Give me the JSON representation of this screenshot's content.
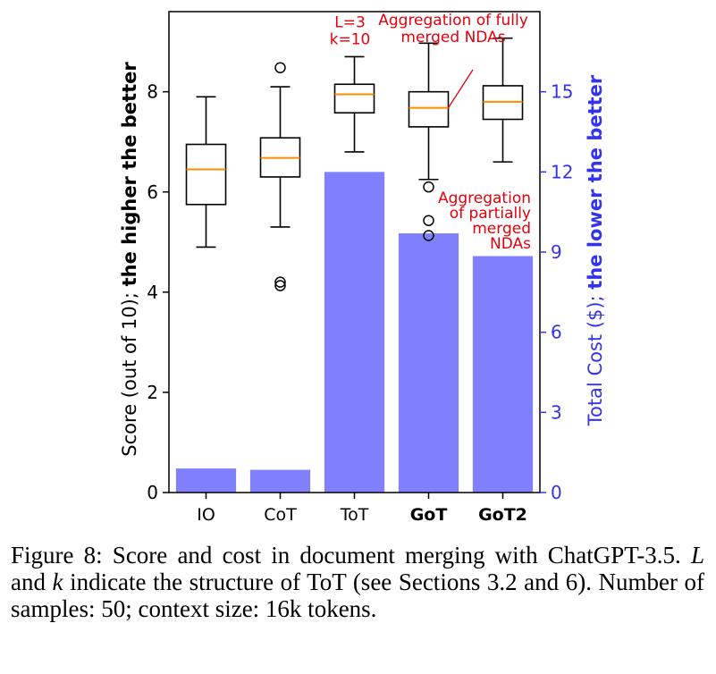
{
  "chart_data": {
    "type": "box+bar",
    "categories": [
      "IO",
      "CoT",
      "ToT",
      "GoT",
      "GoT2"
    ],
    "bold_categories": [
      "GoT",
      "GoT2"
    ],
    "left_axis": {
      "label_prefix": "Score (out of 10); ",
      "label_bold": "the higher the better",
      "ylim": [
        0,
        9.6
      ],
      "ticks": [
        0,
        2,
        4,
        6,
        8
      ]
    },
    "right_axis": {
      "label_prefix": "Total Cost ($); ",
      "label_bold": "the lower the better",
      "ylim": [
        0,
        18
      ],
      "ticks": [
        0,
        3,
        6,
        9,
        12,
        15
      ],
      "color": "#3333ee"
    },
    "cost_bars": {
      "color": "#8080ff",
      "values": [
        0.9,
        0.85,
        12.0,
        9.7,
        8.85
      ]
    },
    "boxplots": [
      {
        "category": "IO",
        "whisker_low": 4.9,
        "q1": 5.75,
        "median": 6.45,
        "q3": 6.95,
        "whisker_high": 7.9,
        "outliers": []
      },
      {
        "category": "CoT",
        "whisker_low": 5.3,
        "q1": 6.3,
        "median": 6.68,
        "q3": 7.08,
        "whisker_high": 8.1,
        "outliers": [
          8.48,
          4.2,
          4.13
        ]
      },
      {
        "category": "ToT",
        "whisker_low": 6.8,
        "q1": 7.58,
        "median": 7.95,
        "q3": 8.15,
        "whisker_high": 8.7,
        "outliers": []
      },
      {
        "category": "GoT",
        "whisker_low": 6.25,
        "q1": 7.3,
        "median": 7.68,
        "q3": 8.0,
        "whisker_high": 8.97,
        "outliers": [
          6.1,
          5.43,
          5.13
        ]
      },
      {
        "category": "GoT2",
        "whisker_low": 6.6,
        "q1": 7.45,
        "median": 7.8,
        "q3": 8.12,
        "whisker_high": 9.07,
        "outliers": []
      }
    ],
    "box_color": "#000000",
    "median_color": "#ff8c00",
    "annotations": [
      {
        "lines": [
          "L=3",
          "k=10"
        ],
        "anchor": "ToT-top"
      },
      {
        "lines": [
          "Aggregation of fully",
          "merged NDAs"
        ],
        "anchor": "GoT-median"
      },
      {
        "lines": [
          "Aggregation",
          "of partially",
          "merged",
          "NDAs"
        ],
        "anchor": "GoT-outliers"
      }
    ],
    "annotation_color": "#e3000b"
  },
  "caption": {
    "label": "Figure 8:",
    "text_part1": " Score and cost in document merging with ChatGPT-3.5. ",
    "var_L": "L",
    "text_part2": " and ",
    "var_k": "k",
    "text_part3": " indicate the structure of ToT (see Sections 3.2 and 6). Number of samples: 50; context size: 16k tokens."
  }
}
